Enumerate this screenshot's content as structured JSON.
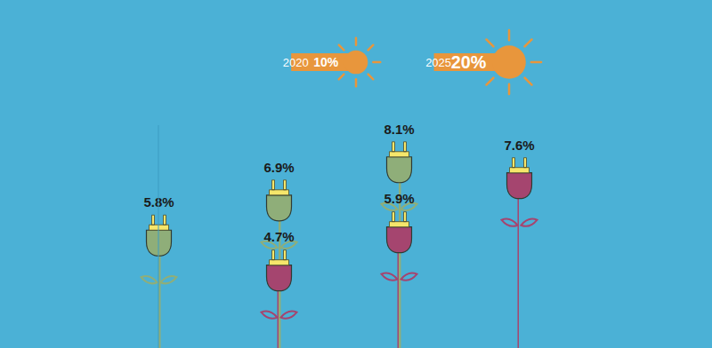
{
  "chart_data": {
    "type": "bar",
    "categories": [
      null,
      null,
      null
    ],
    "series": [
      {
        "color": "#8fae79",
        "values": [
          5.8,
          6.9,
          8.1
        ],
        "value_labels": [
          "5.8%",
          "6.9%",
          "8.1%"
        ]
      },
      {
        "color": "#a5456f",
        "values": [
          4.7,
          5.9,
          7.6
        ],
        "value_labels": [
          "4.7%",
          "5.9%",
          "7.6%"
        ]
      }
    ],
    "ylim": [
      2,
      9
    ],
    "yticks": [],
    "tick_labels": false,
    "data_labels": true,
    "annotations": [
      {
        "label": "2020",
        "value": 10,
        "value_label": "10%"
      },
      {
        "label": "2025",
        "value": 20,
        "value_label": "20%"
      }
    ]
  }
}
